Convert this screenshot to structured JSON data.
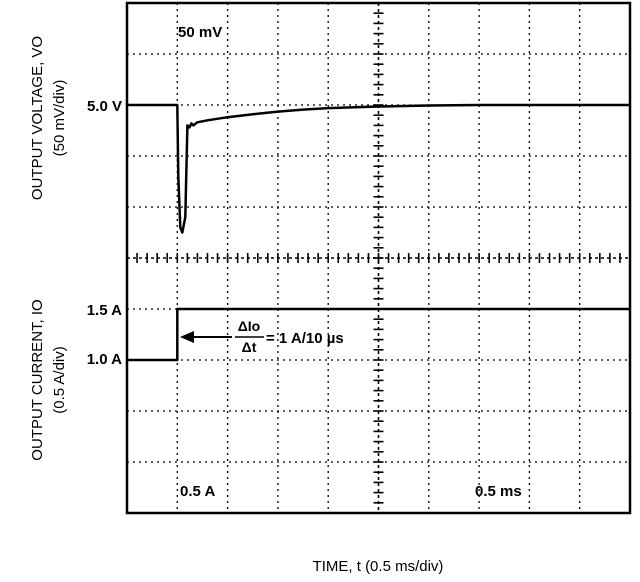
{
  "chart_data": {
    "type": "line",
    "xlabel": "TIME, t (0.5 ms/div)",
    "panels": [
      {
        "name": "output-voltage",
        "ylabel": "OUTPUT VOLTAGE, VO",
        "ylabel_sub": "(50 mV/div)",
        "scale_annotation": "50 mV",
        "reference_label": "5.0 V",
        "series": [
          {
            "x": [
              0,
              0.5,
              0.51,
              0.53,
              0.55,
              0.58,
              0.6,
              0.62,
              0.64,
              0.66,
              0.7,
              0.8,
              1.0,
              1.25,
              1.5,
              1.75,
              2.0,
              2.5,
              3.0,
              3.5,
              4.0,
              4.5,
              5.0
            ],
            "y": [
              0,
              0,
              -70,
              -120,
              -125,
              -110,
              -20,
              -22,
              -18,
              -20,
              -17,
              -15,
              -12,
              -9,
              -6.5,
              -4.5,
              -3,
              -1.5,
              -0.5,
              0,
              0,
              0,
              0
            ]
          }
        ]
      },
      {
        "name": "output-current",
        "ylabel": "OUTPUT CURRENT, IO",
        "ylabel_sub": "(0.5 A/div)",
        "scale_annotation": "0.5 A",
        "upper_label": "1.5 A",
        "lower_label": "1.0 A",
        "slew_numerator": "ΔIo",
        "slew_denominator": "Δt",
        "slew_value": "= 1 A/10 µs",
        "series": [
          {
            "x": [
              0,
              0.5,
              0.5,
              5.0
            ],
            "y": [
              1.0,
              1.0,
              1.5,
              1.5
            ]
          }
        ]
      }
    ],
    "time_annotation": "0.5 ms",
    "grid": true
  }
}
